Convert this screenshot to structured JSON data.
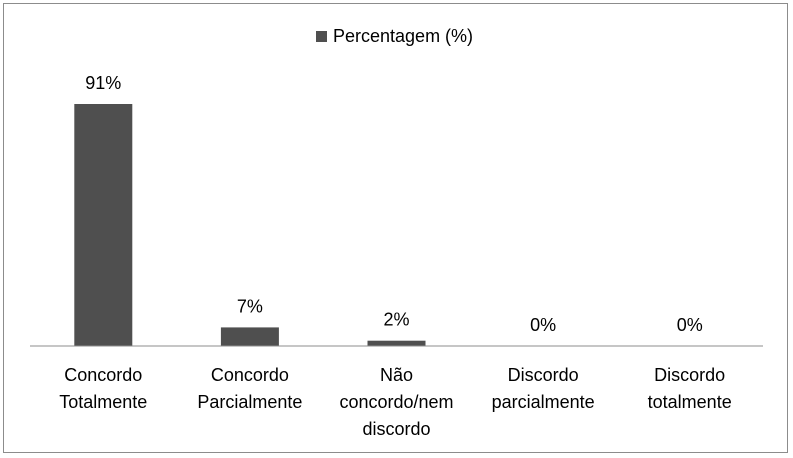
{
  "chart_data": {
    "type": "bar",
    "categories": [
      [
        "Concordo",
        "Totalmente"
      ],
      [
        "Concordo",
        "Parcialmente"
      ],
      [
        "Não",
        "concordo/nem",
        "discordo"
      ],
      [
        "Discordo",
        "parcialmente"
      ],
      [
        "Discordo",
        "totalmente"
      ]
    ],
    "series": [
      {
        "name": "Percentagem (%)",
        "values": [
          91,
          7,
          2,
          0,
          0
        ],
        "labels": [
          "91%",
          "7%",
          "2%",
          "0%",
          "0%"
        ],
        "color": "#4f4f4f"
      }
    ],
    "title": "",
    "xlabel": "",
    "ylabel": "",
    "ylim": [
      0,
      91
    ],
    "grid": false,
    "legend": "top-center"
  }
}
